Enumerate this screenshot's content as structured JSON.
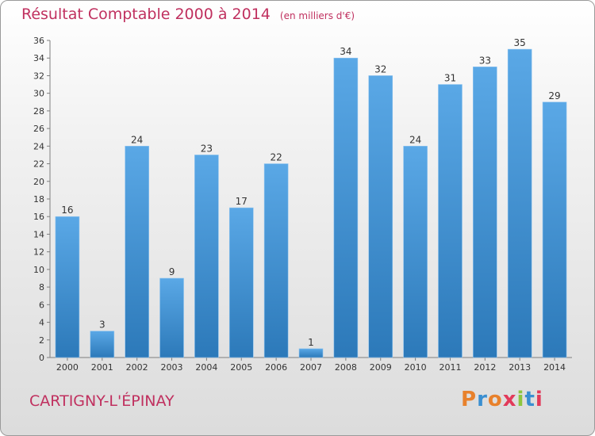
{
  "header": {
    "title": "Résultat Comptable 2000 à 2014",
    "subtitle": "(en milliers d'€)"
  },
  "footer": {
    "city": "CARTIGNY-L'ÉPINAY",
    "brand": "Proxiti"
  },
  "colors": {
    "title": "#c0305f",
    "bar_light": "#5aa8e6",
    "bar_dark": "#2c79b9",
    "brand_letters": [
      "#e8812c",
      "#3a8fd1",
      "#e8812c",
      "#e23a5a",
      "#8dc63f",
      "#3a8fd1",
      "#e23a5a"
    ]
  },
  "chart_data": {
    "type": "bar",
    "title": "Résultat Comptable 2000 à 2014",
    "subtitle": "(en milliers d'€)",
    "xlabel": "",
    "ylabel": "",
    "categories": [
      "2000",
      "2001",
      "2002",
      "2003",
      "2004",
      "2005",
      "2006",
      "2007",
      "2008",
      "2009",
      "2010",
      "2011",
      "2012",
      "2013",
      "2014"
    ],
    "values": [
      16,
      3,
      24,
      9,
      23,
      17,
      22,
      1,
      34,
      32,
      24,
      31,
      33,
      35,
      29
    ],
    "ylim": [
      0,
      36
    ],
    "yticks": [
      0,
      2,
      4,
      6,
      8,
      10,
      12,
      14,
      16,
      18,
      20,
      22,
      24,
      26,
      28,
      30,
      32,
      34,
      36
    ],
    "grid": false,
    "data_labels": true
  }
}
